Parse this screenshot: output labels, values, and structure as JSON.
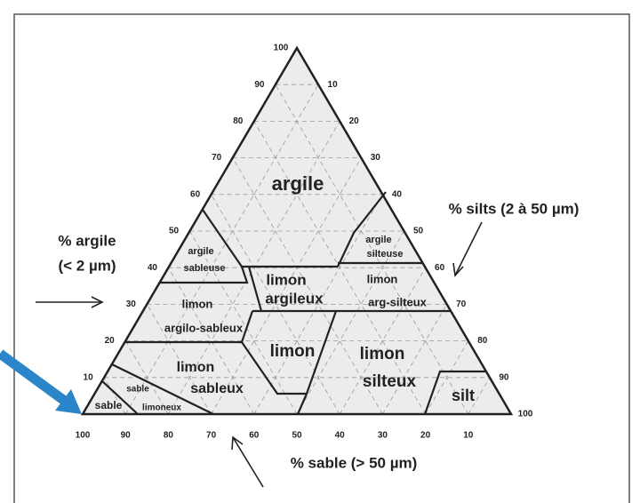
{
  "left_axis": {
    "title_lines": [
      "% argile",
      "(< 2 µm)"
    ],
    "ticks": [
      "10",
      "20",
      "30",
      "40",
      "50",
      "60",
      "70",
      "80",
      "90",
      "100"
    ]
  },
  "right_axis": {
    "title": "% silts (2 à 50 µm)",
    "ticks": [
      "10",
      "20",
      "30",
      "40",
      "50",
      "60",
      "70",
      "80",
      "90",
      "100"
    ]
  },
  "bottom_axis": {
    "title": "% sable (> 50 µm)",
    "ticks": [
      "100",
      "90",
      "80",
      "70",
      "60",
      "50",
      "40",
      "30",
      "20",
      "10"
    ]
  },
  "regions": [
    {
      "lines": [
        "argile"
      ]
    },
    {
      "lines": [
        "argile",
        "sableuse"
      ]
    },
    {
      "lines": [
        "argile",
        "silteuse"
      ]
    },
    {
      "lines": [
        "limon",
        "argileux"
      ]
    },
    {
      "lines": [
        "limon",
        "arg-silteux"
      ]
    },
    {
      "lines": [
        "limon",
        "argilo-sableux"
      ]
    },
    {
      "lines": [
        "limon"
      ]
    },
    {
      "lines": [
        "limon",
        "silteux"
      ]
    },
    {
      "lines": [
        "limon",
        "sableux"
      ]
    },
    {
      "lines": [
        "sable",
        "limoneux"
      ]
    },
    {
      "lines": [
        "sable"
      ]
    },
    {
      "lines": [
        "silt"
      ]
    }
  ]
}
